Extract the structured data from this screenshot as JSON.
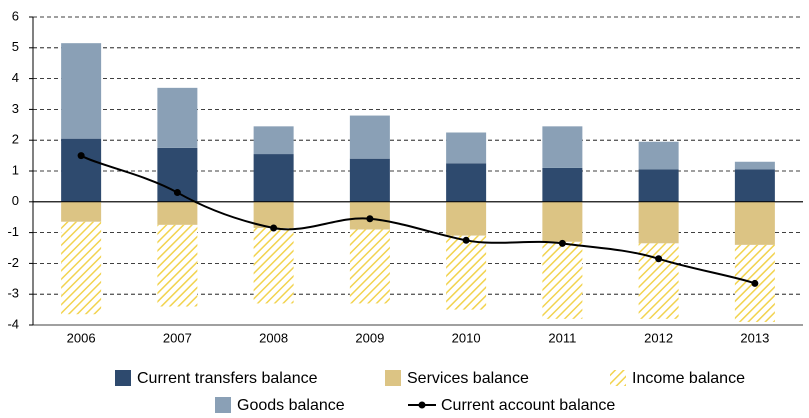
{
  "chart_data": {
    "type": "bar",
    "stacked": true,
    "categories": [
      "2006",
      "2007",
      "2008",
      "2009",
      "2010",
      "2011",
      "2012",
      "2013"
    ],
    "series": [
      {
        "name": "Current transfers balance",
        "color": "#2e4a6e",
        "values": [
          2.05,
          1.75,
          1.55,
          1.4,
          1.25,
          1.1,
          1.05,
          1.05
        ]
      },
      {
        "name": "Goods balance",
        "color": "#8aa0b6",
        "values": [
          3.1,
          1.95,
          0.9,
          1.4,
          1.0,
          1.35,
          0.9,
          0.25
        ]
      },
      {
        "name": "Services balance",
        "color": "#dcc484",
        "values": [
          -0.65,
          -0.75,
          -0.85,
          -0.9,
          -1.1,
          -1.3,
          -1.35,
          -1.4
        ]
      },
      {
        "name": "Income balance",
        "color": "#f2d34f",
        "hatch": true,
        "values": [
          -3.0,
          -2.65,
          -2.45,
          -2.4,
          -2.4,
          -2.5,
          -2.45,
          -2.5
        ]
      },
      {
        "name": "Current account balance",
        "color": "#000000",
        "type": "line",
        "values": [
          1.5,
          0.3,
          -0.85,
          -0.55,
          -1.25,
          -1.35,
          -1.85,
          -2.65
        ]
      }
    ],
    "ylim": [
      -4,
      6
    ],
    "yticks": [
      -4,
      -3,
      -2,
      -1,
      0,
      1,
      2,
      3,
      4,
      5,
      6
    ],
    "grid": true
  }
}
